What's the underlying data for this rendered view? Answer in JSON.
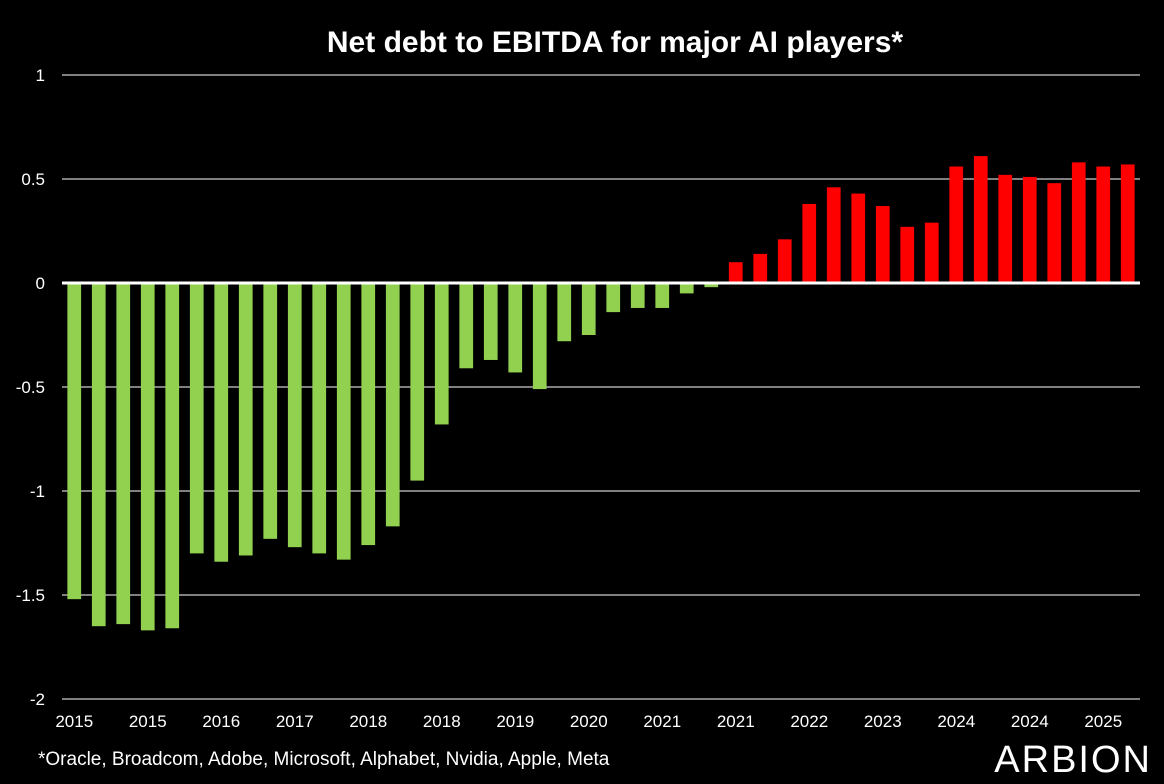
{
  "chart_data": {
    "type": "bar",
    "title": "Net debt to EBITDA for major AI players*",
    "xlabel": "",
    "ylabel": "",
    "ylim": [
      -2,
      1
    ],
    "y_ticks": [
      "1",
      "0.5",
      "0",
      "-0.5",
      "-1",
      "-1.5",
      "-2"
    ],
    "y_tick_values": [
      1,
      0.5,
      0,
      -0.5,
      -1,
      -1.5,
      -2
    ],
    "x_tick_labels": [
      "2015",
      "2015",
      "2016",
      "2017",
      "2018",
      "2018",
      "2019",
      "2020",
      "2021",
      "2021",
      "2022",
      "2023",
      "2024",
      "2024",
      "2025"
    ],
    "grid": true,
    "values": [
      -1.52,
      -1.65,
      -1.64,
      -1.67,
      -1.66,
      -1.3,
      -1.34,
      -1.31,
      -1.23,
      -1.27,
      -1.3,
      -1.33,
      -1.26,
      -1.17,
      -0.95,
      -0.68,
      -0.41,
      -0.37,
      -0.43,
      -0.51,
      -0.28,
      -0.25,
      -0.14,
      -0.12,
      -0.12,
      -0.05,
      -0.02,
      0.1,
      0.14,
      0.21,
      0.38,
      0.46,
      0.43,
      0.37,
      0.27,
      0.29,
      0.56,
      0.61,
      0.52,
      0.51,
      0.48,
      0.58,
      0.56,
      0.57
    ],
    "colors": {
      "negative": "#92d050",
      "positive": "#ff0000",
      "background": "#000000",
      "text": "#ffffff",
      "gridline": "#ffffff"
    }
  },
  "footnote": "*Oracle, Broadcom, Adobe, Microsoft, Alphabet, Nvidia, Apple, Meta",
  "logo_text": "ARBION"
}
